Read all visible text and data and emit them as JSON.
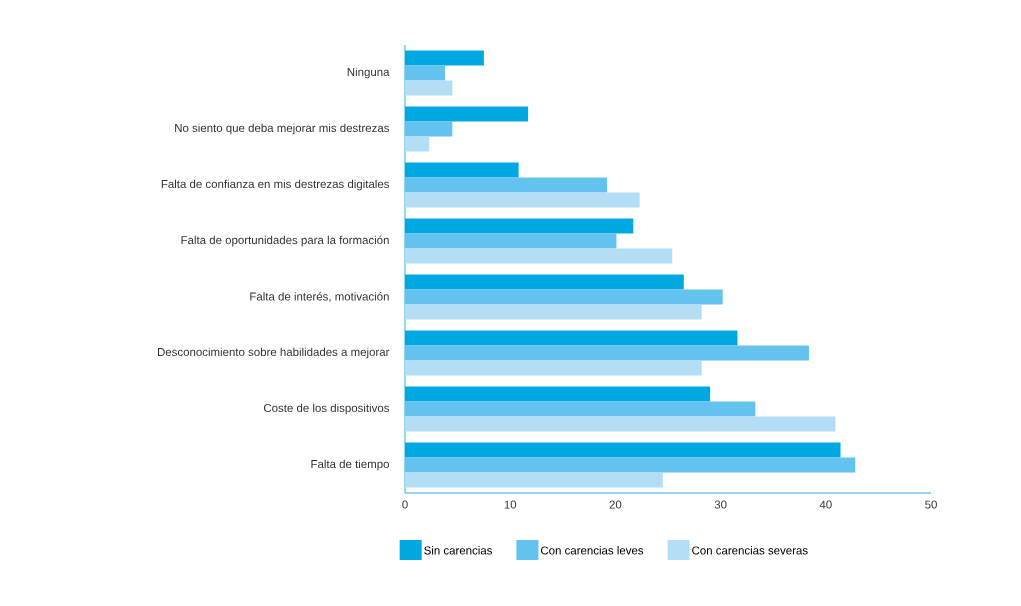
{
  "chart_data": {
    "type": "bar",
    "orientation": "horizontal",
    "categories": [
      "Ninguna",
      "No siento que deba mejorar mis destrezas",
      "Falta de confianza en mis destrezas digitales",
      "Falta de oportunidades para la formación",
      "Falta de interés, motivación",
      "Desconocimiento sobre habilidades a mejorar",
      "Coste de los dispositivos",
      "Falta de tiempo"
    ],
    "series": [
      {
        "name": "Sin carencias",
        "color": "#00a8e1",
        "values": [
          7.5,
          11.7,
          10.8,
          21.7,
          26.5,
          31.6,
          29.0,
          41.4
        ]
      },
      {
        "name": "Con carencias leves",
        "color": "#63c3ee",
        "values": [
          3.8,
          4.5,
          19.2,
          20.1,
          30.2,
          38.4,
          33.3,
          42.8
        ]
      },
      {
        "name": "Con carencias severas",
        "color": "#b3def5",
        "values": [
          4.5,
          2.3,
          22.3,
          25.4,
          28.2,
          28.2,
          40.9,
          24.5
        ]
      }
    ],
    "xlim": [
      0,
      50
    ],
    "xticks": [
      0,
      10,
      20,
      30,
      40,
      50
    ],
    "legend": "bottom",
    "grid": false
  }
}
